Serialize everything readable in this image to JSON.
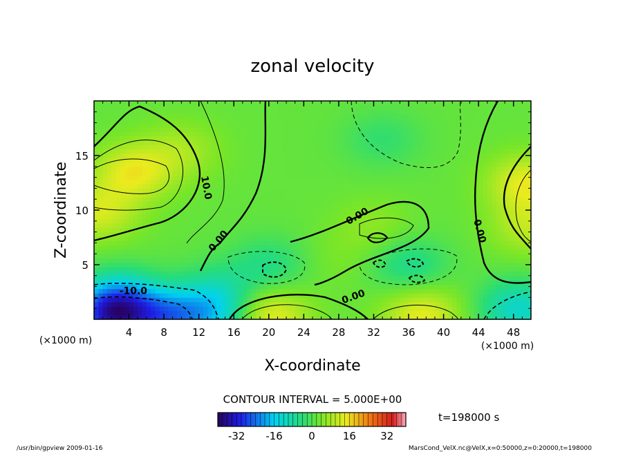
{
  "chart_data": {
    "type": "heatmap",
    "title": "zonal velocity",
    "xlabel": "X-coordinate",
    "ylabel": "Z-coordinate",
    "x_unit": "(×1000 m)",
    "z_unit": "(×1000 m)",
    "xlim": [
      0,
      50
    ],
    "ylim": [
      0,
      20
    ],
    "x_ticks": [
      "4",
      "8",
      "12",
      "16",
      "20",
      "24",
      "28",
      "32",
      "36",
      "40",
      "44",
      "48"
    ],
    "y_ticks": [
      "5",
      "10",
      "15"
    ],
    "contour_interval_label": "CONTOUR INTERVAL = 5.000E+00",
    "time_label": "t=198000  s",
    "colorbar": {
      "min": -40,
      "max": 40,
      "ticks": [
        "-32",
        "-16",
        "0",
        "16",
        "32"
      ]
    },
    "contour_labels": [
      {
        "text": "10.0",
        "x": 12.5,
        "z": 12.0,
        "rotate": 80
      },
      {
        "text": "0.00",
        "x": 14.5,
        "z": 7.0,
        "rotate": -50
      },
      {
        "text": "-10.0",
        "x": 4.5,
        "z": 2.3,
        "rotate": 0
      },
      {
        "text": "0.00",
        "x": 30.3,
        "z": 9.2,
        "rotate": -30
      },
      {
        "text": "0.00",
        "x": 29.8,
        "z": 1.8,
        "rotate": -20
      },
      {
        "text": "0.00",
        "x": 43.8,
        "z": 8.0,
        "rotate": 75
      }
    ],
    "field_centers": [
      {
        "x": 4.5,
        "z": 13.5,
        "value": 14
      },
      {
        "x": 0.5,
        "z": 9.8,
        "value": 12
      },
      {
        "x": 10.0,
        "z": 15.5,
        "value": 8
      },
      {
        "x": 49.5,
        "z": 12.5,
        "value": 14
      },
      {
        "x": 50.0,
        "z": 8.5,
        "value": 10
      },
      {
        "x": 20.0,
        "z": 0.3,
        "value": 15
      },
      {
        "x": 37.5,
        "z": 0.4,
        "value": 14
      },
      {
        "x": 32.0,
        "z": 8.5,
        "value": 6
      },
      {
        "x": 28.0,
        "z": 5.5,
        "value": 4
      },
      {
        "x": 20.0,
        "z": 5.0,
        "value": -5
      },
      {
        "x": 36.0,
        "z": 5.0,
        "value": -6
      },
      {
        "x": 33.0,
        "z": 16.5,
        "value": -3
      },
      {
        "x": 25.0,
        "z": 1.5,
        "value": 2
      },
      {
        "x": 14.0,
        "z": 2.5,
        "value": -6
      },
      {
        "x": 3.0,
        "z": 2.0,
        "value": -12
      },
      {
        "x": 2.0,
        "z": 0.3,
        "value": -26
      },
      {
        "x": 8.5,
        "z": 0.2,
        "value": -18
      },
      {
        "x": 14.0,
        "z": 0.3,
        "value": -10
      },
      {
        "x": 48.5,
        "z": 1.0,
        "value": -12
      }
    ]
  },
  "footer": {
    "left": "/usr/bin/gpview  2009-01-16",
    "right": "MarsCond_VelX.nc@VelX,x=0:50000,z=0:20000,t=198000"
  }
}
